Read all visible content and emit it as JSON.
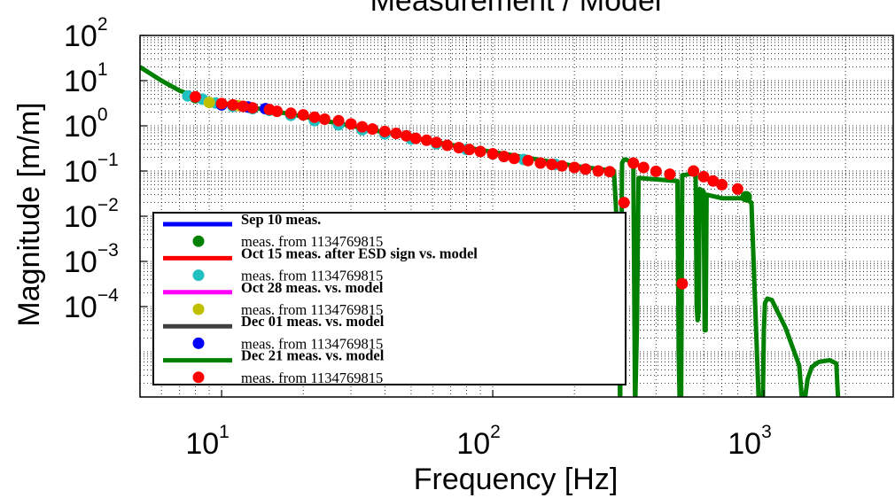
{
  "chart_data": {
    "type": "line",
    "title": "Measurement / Model",
    "xlabel": "Frequency [Hz]",
    "ylabel": "Magnitude [m/m]",
    "xscale": "log",
    "yscale": "log",
    "xlim": [
      5,
      3000
    ],
    "ylim": [
      1e-06,
      100
    ],
    "grid": true,
    "legend_position": "bottom-left",
    "x_ticks": [
      {
        "value": 10,
        "base": "10",
        "exp": "1"
      },
      {
        "value": 100,
        "base": "10",
        "exp": "2"
      },
      {
        "value": 1000,
        "base": "10",
        "exp": "3"
      }
    ],
    "y_ticks": [
      {
        "value": 100,
        "base": "10",
        "exp": "2"
      },
      {
        "value": 10,
        "base": "10",
        "exp": "1"
      },
      {
        "value": 1,
        "base": "10",
        "exp": "0"
      },
      {
        "value": 0.1,
        "base": "10",
        "exp": "−1"
      },
      {
        "value": 0.01,
        "base": "10",
        "exp": "−2"
      },
      {
        "value": 0.001,
        "base": "10",
        "exp": "−3"
      },
      {
        "value": 0.0001,
        "base": "10",
        "exp": "−4"
      }
    ],
    "series": [
      {
        "name": "Sep 10 meas.",
        "kind": "line",
        "color": "#0000ff",
        "x": [],
        "y": []
      },
      {
        "name": "meas. from 1134769815",
        "kind": "points",
        "color": "#008000",
        "x": [
          8,
          860
        ],
        "y": [
          4.2,
          0.027
        ]
      },
      {
        "name": "Oct 15 meas. after ESD sign vs. model",
        "kind": "line",
        "color": "#ff0000",
        "x": [],
        "y": []
      },
      {
        "name": "meas. from 1134769815",
        "kind": "points",
        "color": "#20c0c0",
        "x": [
          7.5,
          8.5,
          9.5,
          11,
          13,
          15,
          18,
          22,
          27,
          33,
          40,
          50,
          62,
          80,
          100,
          130,
          170,
          220
        ],
        "y": [
          4.6,
          3.9,
          3.2,
          2.7,
          2.4,
          2.2,
          1.7,
          1.3,
          1.05,
          0.82,
          0.66,
          0.51,
          0.4,
          0.3,
          0.24,
          0.18,
          0.14,
          0.11
        ]
      },
      {
        "name": "Oct 28 meas. vs. model",
        "kind": "line",
        "color": "#ff00ff",
        "x": [],
        "y": []
      },
      {
        "name": "meas. from 1134769815",
        "kind": "points",
        "color": "#c0c000",
        "x": [
          9,
          11.5
        ],
        "y": [
          3.3,
          2.8
        ]
      },
      {
        "name": "Dec 01 meas. vs. model",
        "kind": "line",
        "color": "#404040",
        "x": [],
        "y": []
      },
      {
        "name": "meas. from 1134769815",
        "kind": "points",
        "color": "#0000ff",
        "x": [
          10,
          12.5,
          14.5
        ],
        "y": [
          2.9,
          2.6,
          2.4
        ]
      },
      {
        "name": "Dec 21 meas. vs. model",
        "kind": "line",
        "color": "#008000",
        "x": [
          5,
          6,
          7,
          8,
          9,
          10,
          12,
          15,
          20,
          30,
          50,
          80,
          120,
          200,
          280,
          290,
          295,
          300,
          305,
          310,
          330,
          335,
          340,
          345,
          480,
          485,
          490,
          495,
          500,
          560,
          565,
          570,
          575,
          580,
          600,
          605,
          610,
          615,
          700,
          850,
          900,
          960,
          990,
          1000,
          1010,
          1030,
          1070,
          1100,
          1200,
          1350,
          1380,
          1400,
          1420,
          1450,
          1500,
          1560,
          1600,
          1750,
          1850,
          1870,
          1890,
          1900
        ],
        "y": [
          20,
          10,
          6,
          4.5,
          3.8,
          3.2,
          2.7,
          2.2,
          1.6,
          1.0,
          0.55,
          0.33,
          0.22,
          0.13,
          0.1,
          0.002,
          5e-07,
          0.15,
          0.18,
          0.18,
          0.15,
          5e-07,
          3e-05,
          0.07,
          0.06,
          1e-05,
          5e-07,
          5e-07,
          0.08,
          0.09,
          0.0001,
          5e-05,
          8e-05,
          0.04,
          0.035,
          3e-05,
          3e-05,
          0.03,
          0.025,
          0.025,
          0.02,
          5e-07,
          5e-07,
          3e-05,
          0.00012,
          0.00015,
          0.00014,
          0.0001,
          3.5e-05,
          5e-06,
          1e-06,
          5e-07,
          1e-06,
          2.5e-06,
          4.5e-06,
          5.5e-06,
          6e-06,
          6.5e-06,
          5.5e-06,
          1.5e-06,
          5e-07,
          5e-07
        ]
      },
      {
        "name": "meas. from 1134769815",
        "kind": "points",
        "color": "#ff0000",
        "x": [
          8,
          10,
          11,
          12,
          13,
          15,
          16,
          18,
          20,
          22,
          24,
          27,
          30,
          33,
          36,
          40,
          44,
          48,
          52,
          57,
          62,
          68,
          75,
          82,
          90,
          100,
          110,
          120,
          135,
          150,
          165,
          180,
          200,
          220,
          245,
          270,
          305,
          330,
          360,
          400,
          450,
          500,
          550,
          600,
          650,
          700,
          800
        ],
        "y": [
          4.4,
          3.1,
          2.9,
          2.7,
          2.5,
          2.3,
          2.1,
          1.9,
          1.75,
          1.55,
          1.4,
          1.3,
          1.1,
          0.95,
          0.85,
          0.75,
          0.68,
          0.6,
          0.53,
          0.48,
          0.43,
          0.37,
          0.33,
          0.3,
          0.27,
          0.24,
          0.21,
          0.19,
          0.17,
          0.15,
          0.14,
          0.13,
          0.12,
          0.11,
          0.1,
          0.097,
          0.02,
          0.15,
          0.12,
          0.098,
          0.085,
          0.00032,
          0.1,
          0.075,
          0.06,
          0.05,
          0.04
        ]
      }
    ]
  }
}
